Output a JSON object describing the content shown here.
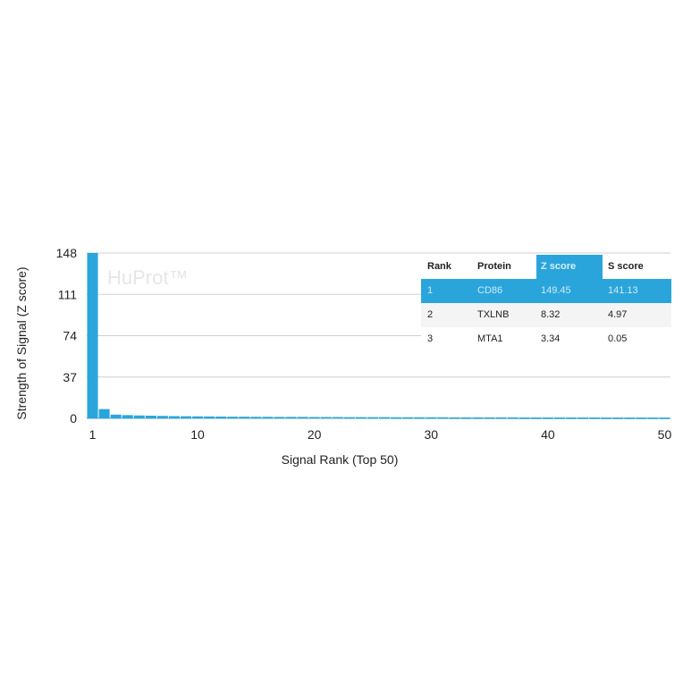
{
  "chart_data": {
    "type": "bar",
    "xlabel": "Signal Rank (Top 50)",
    "ylabel": "Strength of Signal (Z score)",
    "watermark": "HuProt™",
    "ylim": [
      0,
      148
    ],
    "xlim": [
      1,
      50
    ],
    "yticks": [
      "0",
      "37",
      "74",
      "111",
      "148"
    ],
    "xticks": [
      "1",
      "10",
      "20",
      "30",
      "40",
      "50"
    ],
    "grid": true,
    "bar_color": "#2aa5db",
    "x": [
      1,
      2,
      3,
      4,
      5,
      6,
      7,
      8,
      9,
      10,
      11,
      12,
      13,
      14,
      15,
      16,
      17,
      18,
      19,
      20,
      21,
      22,
      23,
      24,
      25,
      26,
      27,
      28,
      29,
      30,
      31,
      32,
      33,
      34,
      35,
      36,
      37,
      38,
      39,
      40,
      41,
      42,
      43,
      44,
      45,
      46,
      47,
      48,
      49,
      50
    ],
    "values": [
      149.45,
      8.32,
      3.34,
      2.9,
      2.6,
      2.4,
      2.2,
      2.0,
      1.9,
      1.8,
      1.7,
      1.6,
      1.5,
      1.5,
      1.4,
      1.4,
      1.3,
      1.3,
      1.3,
      1.2,
      1.2,
      1.2,
      1.1,
      1.1,
      1.1,
      1.1,
      1.0,
      1.0,
      1.0,
      1.0,
      1.0,
      0.9,
      0.9,
      0.9,
      0.9,
      0.9,
      0.9,
      0.8,
      0.8,
      0.8,
      0.8,
      0.8,
      0.8,
      0.8,
      0.7,
      0.7,
      0.7,
      0.7,
      0.7,
      0.7
    ]
  },
  "table": {
    "headers": [
      "Rank",
      "Protein",
      "Z score",
      "S score"
    ],
    "rows": [
      [
        "1",
        "CD86",
        "149.45",
        "141.13"
      ],
      [
        "2",
        "TXLNB",
        "8.32",
        "4.97"
      ],
      [
        "3",
        "MTA1",
        "3.34",
        "0.05"
      ]
    ]
  }
}
